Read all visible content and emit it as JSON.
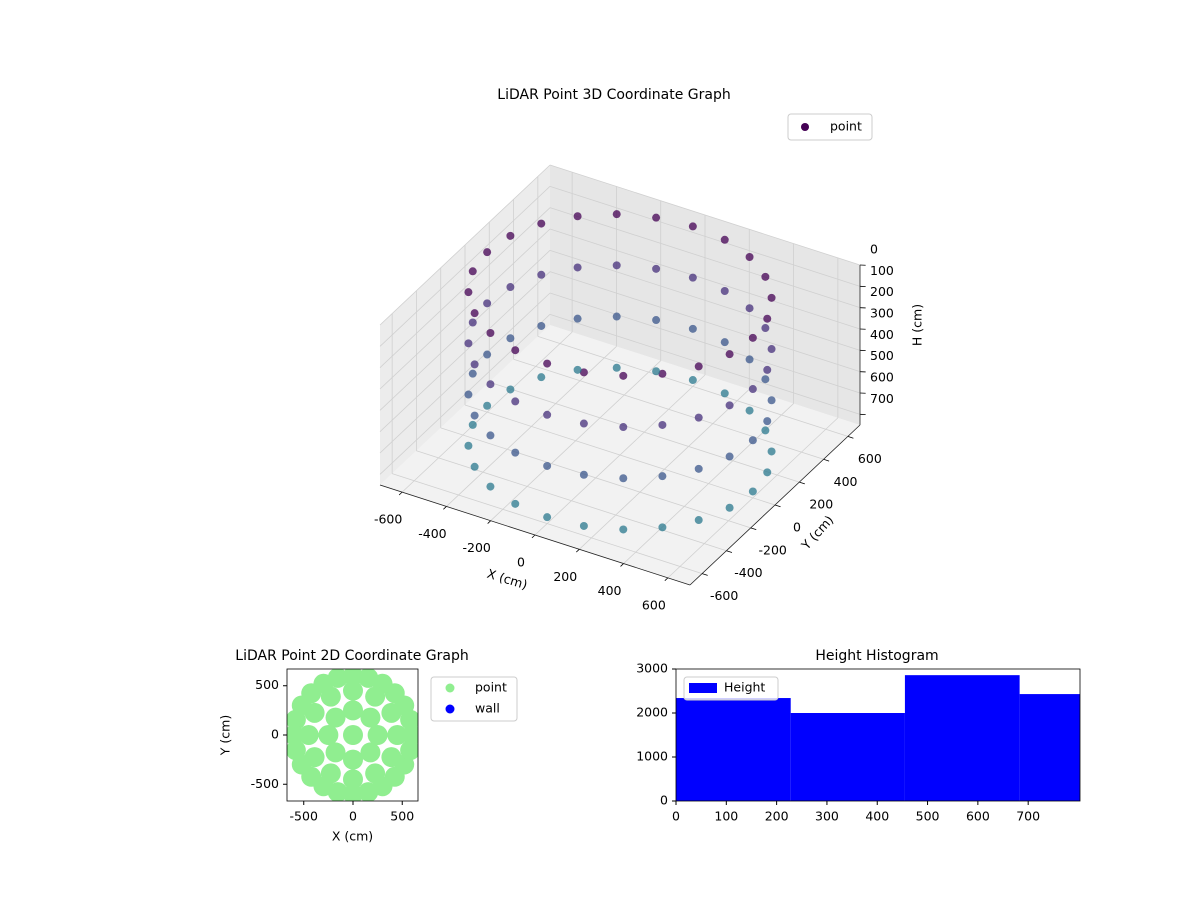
{
  "chart_data": [
    {
      "type": "scatter3d",
      "title": "LiDAR Point 3D Coordinate Graph",
      "xlabel": "X (cm)",
      "ylabel": "Y (cm)",
      "zlabel": "H (cm)",
      "xlim": [
        -700,
        700
      ],
      "ylim": [
        -700,
        700
      ],
      "zlim": [
        0,
        750
      ],
      "zinvert": true,
      "xticks": [
        -600,
        -400,
        -200,
        0,
        200,
        400,
        600
      ],
      "yticks": [
        -600,
        -400,
        -200,
        0,
        200,
        400,
        600
      ],
      "zticks": [
        0,
        100,
        200,
        300,
        400,
        500,
        600,
        700
      ],
      "grid": true,
      "legend": "upper right",
      "colormap": "viridis",
      "clim": [
        0,
        1800
      ],
      "series": [
        {
          "name": "point",
          "color": "#440154",
          "x": [
            600,
            580,
            520,
            424,
            300,
            155,
            0,
            -155,
            -300,
            -424,
            -520,
            -580,
            -600,
            -580,
            -520,
            -424,
            -300,
            -155,
            0,
            155,
            300,
            424,
            520,
            580,
            600,
            580,
            520,
            424,
            300,
            155,
            0,
            -155,
            -300,
            -424,
            -520,
            -580,
            -600,
            -580,
            -520,
            -424,
            -300,
            -155,
            0,
            155,
            300,
            424,
            520,
            580,
            600,
            580,
            520,
            424,
            300,
            155,
            0,
            -155,
            -300,
            -424,
            -520,
            -580,
            -600,
            -580,
            -520,
            -424,
            -300,
            -155,
            0,
            155,
            300,
            424,
            520,
            580,
            600,
            580,
            520,
            424,
            300,
            155,
            0,
            -155,
            -300,
            -424,
            -520,
            -580,
            -600,
            -580,
            -520,
            -424,
            -300,
            -155,
            0,
            155,
            300,
            424,
            520,
            580
          ],
          "y": [
            0,
            155,
            300,
            424,
            520,
            580,
            600,
            580,
            520,
            424,
            300,
            155,
            0,
            -155,
            -300,
            -424,
            -520,
            -580,
            -600,
            -580,
            -520,
            -424,
            -300,
            -155,
            0,
            155,
            300,
            424,
            520,
            580,
            600,
            580,
            520,
            424,
            300,
            155,
            0,
            -155,
            -300,
            -424,
            -520,
            -580,
            -600,
            -580,
            -520,
            -424,
            -300,
            -155,
            0,
            155,
            300,
            424,
            520,
            580,
            600,
            580,
            520,
            424,
            300,
            155,
            0,
            -155,
            -300,
            -424,
            -520,
            -580,
            -600,
            -580,
            -520,
            -424,
            -300,
            -155,
            0,
            155,
            300,
            424,
            520,
            580,
            600,
            580,
            520,
            424,
            300,
            155,
            0,
            -155,
            -300,
            -424,
            -520,
            -580,
            -600,
            -580,
            -520,
            -424,
            -300,
            -155
          ],
          "z": [
            0,
            0,
            0,
            0,
            0,
            0,
            0,
            0,
            0,
            0,
            0,
            0,
            0,
            0,
            0,
            0,
            0,
            0,
            0,
            0,
            0,
            0,
            0,
            0,
            240,
            240,
            240,
            240,
            240,
            240,
            240,
            240,
            240,
            240,
            240,
            240,
            240,
            240,
            240,
            240,
            240,
            240,
            240,
            240,
            240,
            240,
            240,
            240,
            480,
            480,
            480,
            480,
            480,
            480,
            480,
            480,
            480,
            480,
            480,
            480,
            480,
            480,
            480,
            480,
            480,
            480,
            480,
            480,
            480,
            480,
            480,
            480,
            720,
            720,
            720,
            720,
            720,
            720,
            720,
            720,
            720,
            720,
            720,
            720,
            720,
            720,
            720,
            720,
            720,
            720,
            720,
            720,
            720,
            720,
            720,
            720
          ]
        }
      ]
    },
    {
      "type": "scatter",
      "title": "LiDAR Point 2D Coordinate Graph",
      "xlabel": "X (cm)",
      "ylabel": "Y (cm)",
      "xlim": [
        -670,
        660
      ],
      "ylim": [
        -670,
        670
      ],
      "xticks": [
        -500,
        0,
        500
      ],
      "yticks": [
        -500,
        0,
        500
      ],
      "legend": "outside right",
      "series": [
        {
          "name": "point",
          "color": "#90ee90",
          "x": [
            600,
            580,
            520,
            424,
            300,
            155,
            0,
            -155,
            -300,
            -424,
            -520,
            -580,
            -600,
            -580,
            -520,
            -424,
            -300,
            -155,
            0,
            155,
            300,
            424,
            520,
            580,
            450,
            390,
            225,
            0,
            -225,
            -390,
            -450,
            -390,
            -225,
            0,
            225,
            390,
            250,
            177,
            0,
            -177,
            -250,
            -177,
            0,
            177,
            0
          ],
          "y": [
            0,
            155,
            300,
            424,
            520,
            580,
            600,
            580,
            520,
            424,
            300,
            155,
            0,
            -155,
            -300,
            -424,
            -520,
            -580,
            -600,
            -580,
            -520,
            -424,
            -300,
            -155,
            0,
            225,
            390,
            450,
            390,
            225,
            0,
            -225,
            -390,
            -450,
            -390,
            -225,
            0,
            177,
            250,
            177,
            0,
            -177,
            -250,
            -177,
            0
          ]
        },
        {
          "name": "wall",
          "color": "#0000ff",
          "x": [],
          "y": []
        }
      ]
    },
    {
      "type": "histogram",
      "title": "Height Histogram",
      "name": "Height",
      "color": "#0000ff",
      "bins": [
        0,
        228,
        455,
        683,
        803
      ],
      "values": [
        2340,
        2000,
        2860,
        2430
      ],
      "xlim": [
        0,
        803
      ],
      "ylim": [
        0,
        3000
      ],
      "xticks": [
        0,
        100,
        200,
        300,
        400,
        500,
        600,
        700
      ],
      "yticks": [
        0,
        1000,
        2000,
        3000
      ],
      "legend": "upper left"
    }
  ]
}
